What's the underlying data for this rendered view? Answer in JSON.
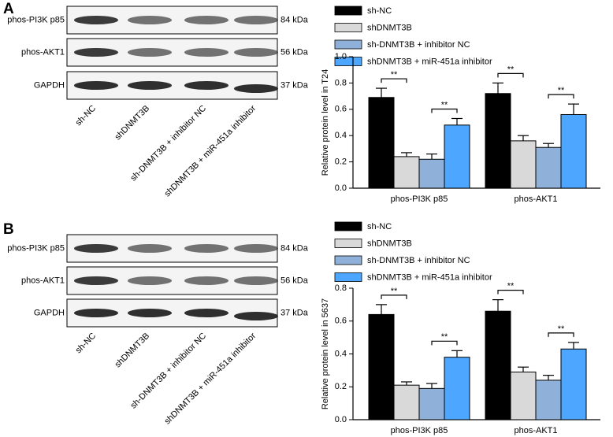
{
  "panels": [
    {
      "label": "A",
      "blot": {
        "rows": [
          "phos-PI3K p85",
          "phos-AKT1",
          "GAPDH"
        ],
        "sizes": [
          "84 kDa",
          "56 kDa",
          "37 kDa"
        ],
        "lanes": [
          "sh-NC",
          "shDNMT3B",
          "sh-DNMT3B + inhibitor NC",
          "shDNMT3B + miR-451a inhibitor"
        ]
      }
    },
    {
      "label": "B",
      "blot": {
        "rows": [
          "phos-PI3K p85",
          "phos-AKT1",
          "GAPDH"
        ],
        "sizes": [
          "84 kDa",
          "56 kDa",
          "37 kDa"
        ],
        "lanes": [
          "sh-NC",
          "shDNMT3B",
          "sh-DNMT3B + inhibitor NC",
          "shDNMT3B + miR-451a inhibitor"
        ]
      }
    }
  ],
  "chart_data": [
    {
      "type": "bar",
      "ylabel": "Relative protein level in T24",
      "categories": [
        "phos-PI3K p85",
        "phos-AKT1"
      ],
      "series": [
        {
          "name": "sh-NC",
          "color": "#000000",
          "values": [
            0.69,
            0.72
          ],
          "errors": [
            0.07,
            0.08
          ]
        },
        {
          "name": "shDNMT3B",
          "color": "#d9d9d9",
          "values": [
            0.24,
            0.36
          ],
          "errors": [
            0.03,
            0.04
          ]
        },
        {
          "name": "sh-DNMT3B + inhibitor NC",
          "color": "#8fb0d8",
          "values": [
            0.22,
            0.31
          ],
          "errors": [
            0.04,
            0.03
          ]
        },
        {
          "name": "shDNMT3B + miR-451a inhibitor",
          "color": "#4da6ff",
          "values": [
            0.48,
            0.56
          ],
          "errors": [
            0.05,
            0.08
          ]
        }
      ],
      "annotations": [
        "**",
        "**",
        "**",
        "**"
      ],
      "ylim": [
        0,
        1
      ],
      "yticks": [
        {
          "value": 0,
          "label": "0.0"
        },
        0.2,
        0.4,
        0.6,
        0.8,
        {
          "value": 1,
          "label": "1.0"
        }
      ],
      "legend": "top"
    },
    {
      "type": "bar",
      "ylabel": "Relative protein level in 5637",
      "categories": [
        "phos-PI3K p85",
        "phos-AKT1"
      ],
      "series": [
        {
          "name": "sh-NC",
          "color": "#000000",
          "values": [
            0.64,
            0.66
          ],
          "errors": [
            0.06,
            0.07
          ]
        },
        {
          "name": "shDNMT3B",
          "color": "#d9d9d9",
          "values": [
            0.21,
            0.29
          ],
          "errors": [
            0.02,
            0.03
          ]
        },
        {
          "name": "sh-DNMT3B + inhibitor NC",
          "color": "#8fb0d8",
          "values": [
            0.19,
            0.24
          ],
          "errors": [
            0.03,
            0.03
          ]
        },
        {
          "name": "shDNMT3B + miR-451a inhibitor",
          "color": "#4da6ff",
          "values": [
            0.38,
            0.43
          ],
          "errors": [
            0.04,
            0.04
          ]
        }
      ],
      "annotations": [
        "**",
        "**",
        "**",
        "**"
      ],
      "ylim": [
        0,
        0.8
      ],
      "yticks": [
        {
          "value": 0,
          "label": "0.0"
        },
        0.2,
        0.4,
        0.6,
        0.8
      ],
      "legend": "top"
    }
  ]
}
